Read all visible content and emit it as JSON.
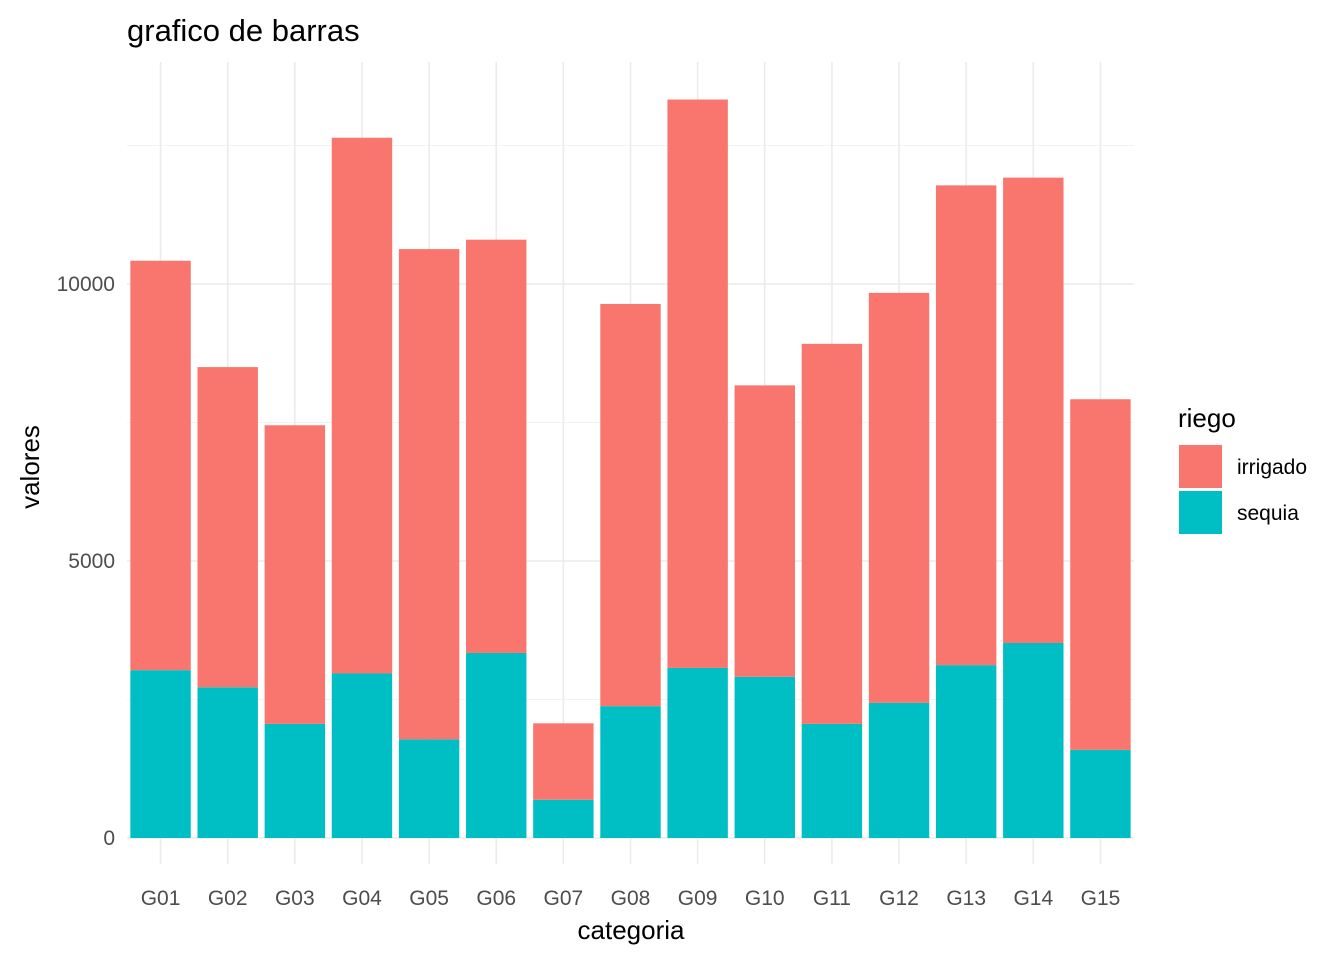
{
  "chart_data": {
    "type": "bar",
    "stacked": true,
    "title": "grafico de barras",
    "xlabel": "categoria",
    "ylabel": "valores",
    "categories": [
      "G01",
      "G02",
      "G03",
      "G04",
      "G05",
      "G06",
      "G07",
      "G08",
      "G09",
      "G10",
      "G11",
      "G12",
      "G13",
      "G14",
      "G15"
    ],
    "series": [
      {
        "name": "sequia",
        "color": "#00BFC4",
        "values": [
          3030,
          2720,
          2060,
          2970,
          1780,
          3340,
          690,
          2380,
          3070,
          2910,
          2060,
          2440,
          3120,
          3520,
          1590
        ]
      },
      {
        "name": "irrigado",
        "color": "#F8766D",
        "values": [
          7390,
          5780,
          5390,
          9670,
          8850,
          7460,
          1380,
          7260,
          10260,
          5260,
          6860,
          7400,
          8660,
          8400,
          6330
        ]
      }
    ],
    "ylim": [
      0,
      13600
    ],
    "yticks": [
      0,
      5000,
      10000
    ],
    "grid": true,
    "legend": {
      "title": "riego",
      "position": "right",
      "entries": [
        {
          "label": "irrigado",
          "color": "#F8766D"
        },
        {
          "label": "sequia",
          "color": "#00BFC4"
        }
      ]
    }
  }
}
